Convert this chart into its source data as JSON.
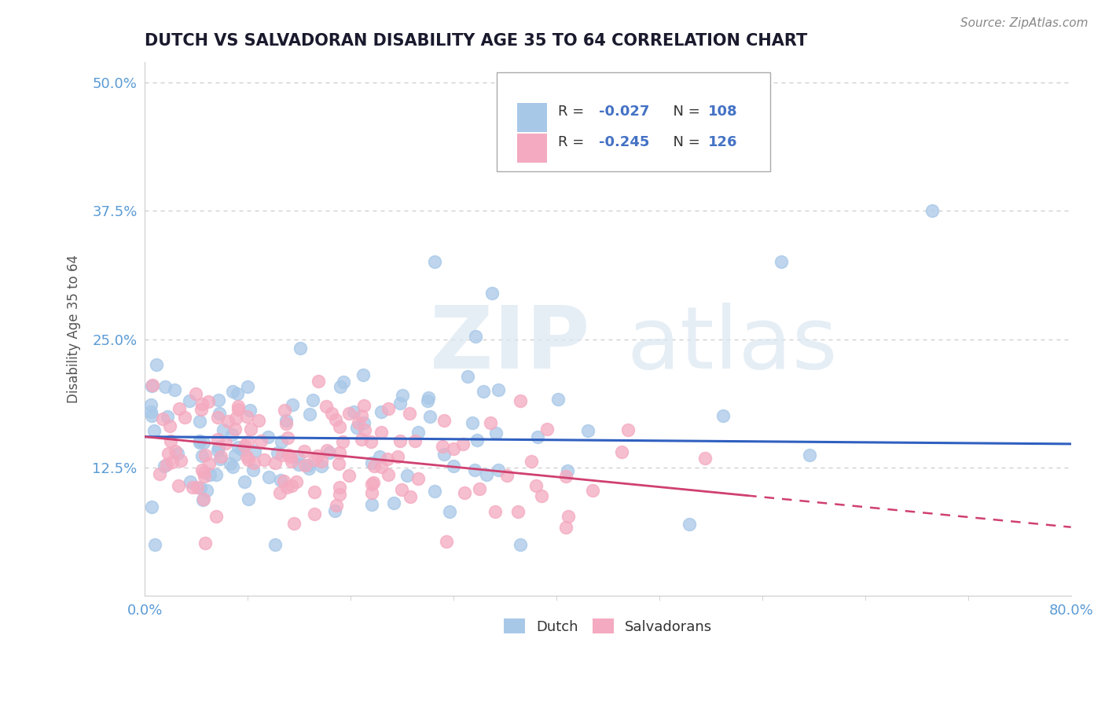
{
  "title": "DUTCH VS SALVADORAN DISABILITY AGE 35 TO 64 CORRELATION CHART",
  "source": "Source: ZipAtlas.com",
  "ylabel": "Disability Age 35 to 64",
  "xlim": [
    0.0,
    0.8
  ],
  "ylim": [
    0.0,
    0.52
  ],
  "yticks": [
    0.0,
    0.125,
    0.25,
    0.375,
    0.5
  ],
  "ytick_labels": [
    "",
    "12.5%",
    "25.0%",
    "37.5%",
    "50.0%"
  ],
  "dutch_R": -0.027,
  "dutch_N": 108,
  "salv_R": -0.245,
  "salv_N": 126,
  "dutch_color": "#a8c8e8",
  "salv_color": "#f4aac0",
  "dutch_line_color": "#3060c0",
  "salv_line_color": "#d04070",
  "tick_label_color": "#5b9bd5",
  "watermark_zip": "ZIP",
  "watermark_atlas": "atlas",
  "legend_value_color": "#4472c4",
  "background_color": "#ffffff",
  "grid_color": "#cccccc",
  "spine_color": "#cccccc"
}
